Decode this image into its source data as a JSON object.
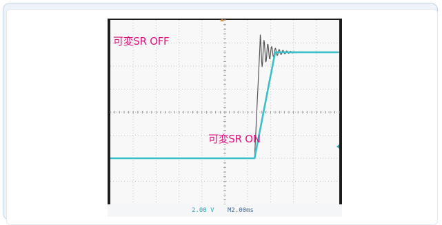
{
  "chart_data": {
    "type": "line",
    "title": "",
    "xlabel": "",
    "ylabel": "",
    "grid": true,
    "divisions": {
      "x": 10,
      "y": 8
    },
    "series": [
      {
        "name": "可変SR OFF",
        "color": "#555555",
        "points": [
          [
            0,
            2.0
          ],
          [
            6.3,
            2.0
          ],
          [
            6.55,
            6.0
          ],
          [
            6.9,
            6.6
          ],
          [
            10,
            6.6
          ]
        ]
      },
      {
        "name": "可変SR ON",
        "color": "#3bbfc9",
        "points": [
          [
            0,
            2.0
          ],
          [
            6.3,
            2.0
          ],
          [
            9.0,
            4.3
          ],
          [
            11.5,
            6.2
          ],
          [
            12.0,
            6.6
          ],
          [
            14.0,
            6.6
          ]
        ]
      }
    ],
    "annotations": [
      "可変SR OFF",
      "可変SR ON"
    ]
  },
  "status": {
    "volts_per_div": "2.00 V",
    "time_per_div": "M2.00ms"
  },
  "colors": {
    "annotation": "#e0117f",
    "channel": "#3bbfc9",
    "raw_trace": "#555555"
  }
}
